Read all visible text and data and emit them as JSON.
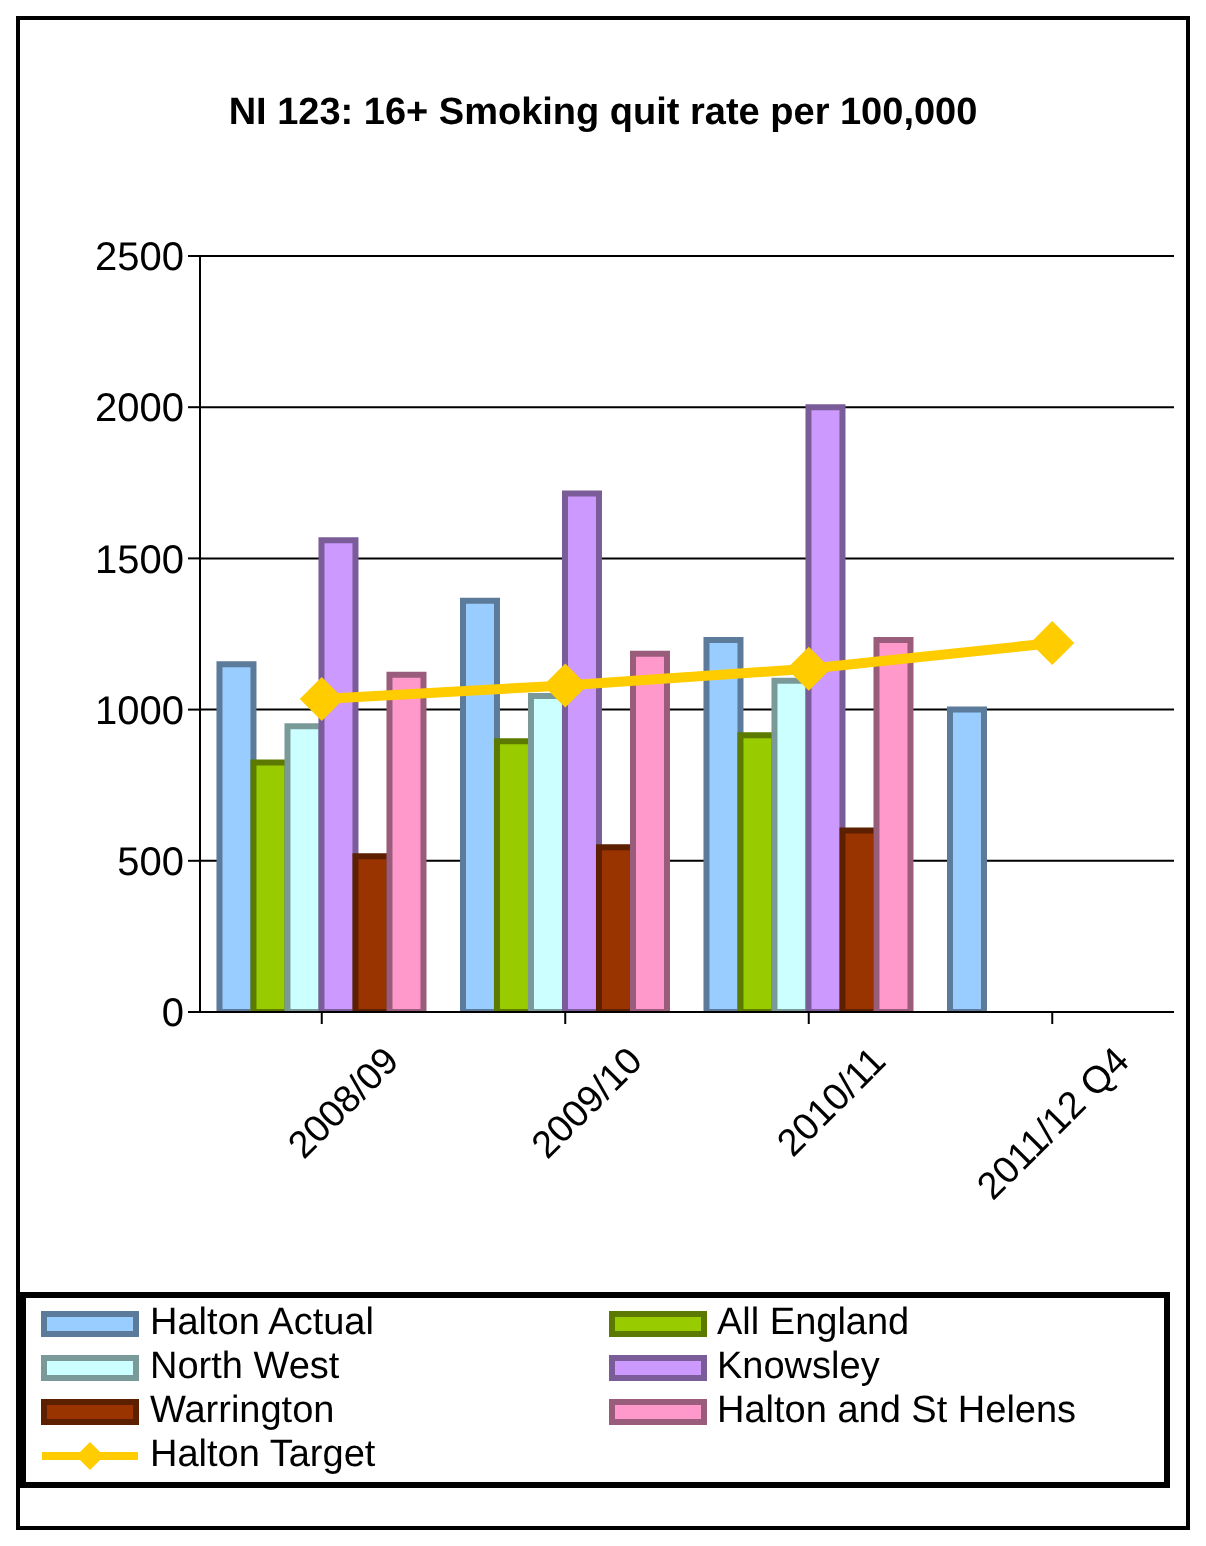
{
  "chart_data": {
    "type": "bar",
    "title": "NI 123: 16+ Smoking quit rate per 100,000",
    "categories": [
      "2008/09",
      "2009/10",
      "2010/11",
      "2011/12 Q4"
    ],
    "ylim": [
      0,
      2500
    ],
    "yticks": [
      0,
      500,
      1000,
      1500,
      2000,
      2500
    ],
    "grid": "y",
    "legend": "bottom",
    "marker": "diamond",
    "series": [
      {
        "name": "Halton Actual",
        "color": "#99ccff",
        "values": [
          1150,
          1360,
          1230,
          1000
        ]
      },
      {
        "name": "All England",
        "color": "#99cc00",
        "values": [
          825,
          895,
          915,
          null
        ]
      },
      {
        "name": "North West",
        "color": "#ccffff",
        "values": [
          945,
          1045,
          1095,
          null
        ]
      },
      {
        "name": "Knowsley",
        "color": "#cc99ff",
        "values": [
          1560,
          1715,
          2000,
          null
        ]
      },
      {
        "name": "Warrington",
        "color": "#993300",
        "values": [
          515,
          545,
          600,
          null
        ]
      },
      {
        "name": "Halton and St Helens",
        "color": "#ff99cc",
        "values": [
          1115,
          1185,
          1230,
          null
        ]
      },
      {
        "name": "Halton Target",
        "type": "line",
        "color": "#ffcc00",
        "values": [
          1035,
          1080,
          1135,
          1220
        ]
      }
    ]
  }
}
